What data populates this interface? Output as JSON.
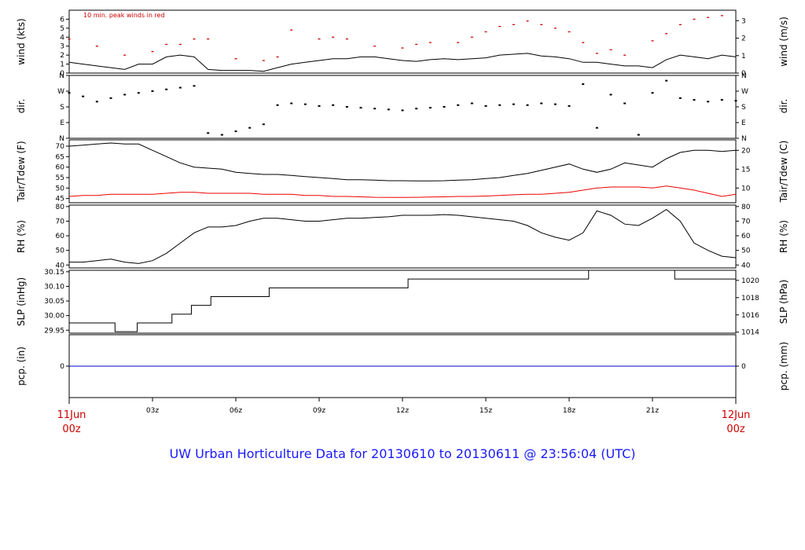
{
  "page_title": "UW Urban Horticulture Data for 20130610  to  20130611 @ 23:56:04  (UTC)",
  "colors": {
    "frame": "#000000",
    "peak": "#cc0000",
    "dew": "#ee0000",
    "precip": "#0000cc",
    "title": "#1a1aff",
    "date": "#cc0000"
  },
  "chart_data": [
    {
      "type": "line",
      "panel": "wind",
      "ylabel_left": "wind (kts)",
      "ylabel_right": "wind (m/s)",
      "annotation": "10 min. peak winds in red",
      "ylim": [
        0,
        7
      ],
      "left_ticks": [
        "0",
        "1",
        "2",
        "3",
        "4",
        "5",
        "6"
      ],
      "right_ticks": [
        "0",
        "1",
        "2",
        "3"
      ],
      "right_tick_values": [
        0,
        1,
        2,
        3
      ],
      "series": [
        {
          "name": "wind",
          "x": [
            0,
            0.5,
            1,
            1.5,
            2,
            2.5,
            3,
            3.5,
            4,
            4.5,
            5,
            5.5,
            6,
            6.5,
            7,
            7.5,
            8,
            8.5,
            9,
            9.5,
            10,
            10.5,
            11,
            11.5,
            12,
            12.5,
            13,
            13.5,
            14,
            14.5,
            15,
            15.5,
            16,
            16.5,
            17,
            17.5,
            18,
            18.5,
            19,
            19.5,
            20,
            20.5,
            21,
            21.5,
            22,
            22.5,
            23,
            23.5,
            24
          ],
          "values": [
            1.2,
            1.0,
            0.8,
            0.6,
            0.4,
            1.0,
            1.0,
            1.8,
            2.0,
            1.8,
            0.4,
            0.3,
            0.3,
            0.3,
            0.2,
            0.6,
            1.0,
            1.2,
            1.4,
            1.6,
            1.6,
            1.8,
            1.8,
            1.6,
            1.4,
            1.3,
            1.5,
            1.6,
            1.5,
            1.6,
            1.7,
            2.0,
            2.1,
            2.2,
            1.9,
            1.8,
            1.6,
            1.2,
            1.2,
            1.0,
            0.8,
            0.8,
            0.6,
            1.5,
            2.0,
            1.8,
            1.6,
            2.0,
            1.8
          ]
        },
        {
          "name": "peak",
          "x": [
            0,
            1,
            2,
            3,
            3.5,
            4,
            4.5,
            5,
            6,
            7,
            7.5,
            8,
            9,
            9.5,
            10,
            11,
            12,
            12.5,
            13,
            14,
            14.5,
            15,
            15.5,
            16,
            16.5,
            17,
            17.5,
            18,
            18.5,
            19,
            19.5,
            20,
            21,
            21.5,
            22,
            22.5,
            23,
            23.5
          ],
          "values": [
            3.8,
            3.0,
            2.0,
            2.4,
            3.2,
            3.2,
            3.8,
            3.8,
            1.6,
            1.4,
            1.8,
            4.8,
            3.8,
            4.0,
            3.8,
            3.0,
            2.8,
            3.2,
            3.4,
            3.4,
            4.0,
            4.6,
            5.2,
            5.4,
            5.8,
            5.4,
            5.0,
            4.6,
            3.4,
            2.2,
            2.6,
            2.0,
            3.6,
            4.4,
            5.4,
            6.0,
            6.2,
            6.4
          ]
        }
      ]
    },
    {
      "type": "scatter",
      "panel": "dir",
      "ylabel_left": "dir.",
      "ylabel_right": "dir.",
      "ylim": [
        0,
        360
      ],
      "ticks": [
        "N",
        "E",
        "S",
        "W",
        "N"
      ],
      "tick_values": [
        0,
        90,
        180,
        270,
        360
      ],
      "x": [
        0,
        0.5,
        1,
        1.5,
        2,
        2.5,
        3,
        3.5,
        4,
        4.5,
        5,
        5.5,
        6,
        6.5,
        7,
        7.5,
        8,
        8.5,
        9,
        9.5,
        10,
        10.5,
        11,
        11.5,
        12,
        12.5,
        13,
        13.5,
        14,
        14.5,
        15,
        15.5,
        16,
        16.5,
        17,
        17.5,
        18,
        18.5,
        19,
        19.5,
        20,
        20.5,
        21,
        21.5,
        22,
        22.5,
        23,
        23.5,
        24
      ],
      "values": [
        260,
        240,
        210,
        230,
        250,
        260,
        270,
        280,
        290,
        300,
        30,
        20,
        40,
        60,
        80,
        190,
        200,
        195,
        185,
        190,
        180,
        175,
        170,
        165,
        160,
        170,
        175,
        180,
        190,
        200,
        185,
        190,
        195,
        190,
        200,
        195,
        185,
        310,
        60,
        250,
        200,
        20,
        260,
        330,
        230,
        220,
        210,
        220,
        215
      ]
    },
    {
      "type": "line",
      "panel": "temperature",
      "ylabel_left": "Tair/Tdew (F)",
      "ylabel_right": "Tair/Tdew (C)",
      "ylim": [
        43,
        73
      ],
      "left_ticks": [
        "45",
        "50",
        "55",
        "60",
        "65",
        "70"
      ],
      "right_ticks": [
        "10",
        "15",
        "20"
      ],
      "right_tick_values": [
        10,
        15,
        20
      ],
      "series": [
        {
          "name": "Tair",
          "x": [
            0,
            0.5,
            1,
            1.5,
            2,
            2.5,
            3,
            3.5,
            4,
            4.5,
            5,
            5.5,
            6,
            6.5,
            7,
            7.5,
            8,
            8.5,
            9,
            9.5,
            10,
            10.5,
            11,
            11.5,
            12,
            12.5,
            13,
            13.5,
            14,
            14.5,
            15,
            15.5,
            16,
            16.5,
            17,
            17.5,
            18,
            18.5,
            19,
            19.5,
            20,
            20.5,
            21,
            21.5,
            22,
            22.5,
            23,
            23.5,
            24
          ],
          "values": [
            70,
            70.5,
            71,
            71.5,
            71,
            71,
            68,
            65,
            62,
            60,
            59.5,
            59,
            57.5,
            57,
            56.5,
            56.5,
            56,
            55.5,
            55,
            54.5,
            54,
            54,
            53.8,
            53.5,
            53.5,
            53.4,
            53.4,
            53.5,
            53.8,
            54,
            54.5,
            55,
            56,
            57,
            58.5,
            60,
            61.5,
            59,
            57.5,
            59,
            62,
            61,
            60,
            64,
            67,
            68,
            68,
            67.5,
            68
          ]
        },
        {
          "name": "Tdew",
          "x": [
            0,
            0.5,
            1,
            1.5,
            2,
            2.5,
            3,
            3.5,
            4,
            4.5,
            5,
            5.5,
            6,
            6.5,
            7,
            7.5,
            8,
            8.5,
            9,
            9.5,
            10,
            10.5,
            11,
            11.5,
            12,
            12.5,
            13,
            13.5,
            14,
            14.5,
            15,
            15.5,
            16,
            16.5,
            17,
            17.5,
            18,
            18.5,
            19,
            19.5,
            20,
            20.5,
            21,
            21.5,
            22,
            22.5,
            23,
            23.5,
            24
          ],
          "values": [
            46,
            46.5,
            46.5,
            47,
            47,
            47,
            47,
            47.5,
            48,
            48,
            47.5,
            47.5,
            47.5,
            47.5,
            47,
            47,
            47,
            46.5,
            46.5,
            46,
            46,
            45.8,
            45.6,
            45.5,
            45.5,
            45.6,
            45.7,
            45.8,
            46,
            46,
            46.2,
            46.5,
            46.8,
            47,
            47,
            47.5,
            48,
            49,
            50,
            50.5,
            50.5,
            50.5,
            50,
            51,
            50,
            49,
            47.5,
            46,
            47
          ]
        }
      ]
    },
    {
      "type": "line",
      "panel": "rh",
      "ylabel_left": "RH (%)",
      "ylabel_right": "RH (%)",
      "ylim": [
        38,
        81
      ],
      "left_ticks": [
        "40",
        "50",
        "60",
        "70",
        "80"
      ],
      "right_ticks": [
        "40",
        "50",
        "60",
        "70",
        "80"
      ],
      "series": [
        {
          "name": "RH",
          "x": [
            0,
            0.5,
            1,
            1.5,
            2,
            2.5,
            3,
            3.5,
            4,
            4.5,
            5,
            5.5,
            6,
            6.5,
            7,
            7.5,
            8,
            8.5,
            9,
            9.5,
            10,
            10.5,
            11,
            11.5,
            12,
            12.5,
            13,
            13.5,
            14,
            14.5,
            15,
            15.5,
            16,
            16.5,
            17,
            17.5,
            18,
            18.5,
            19,
            19.5,
            20,
            20.5,
            21,
            21.5,
            22,
            22.5,
            23,
            23.5,
            24
          ],
          "values": [
            42,
            42,
            43,
            44,
            42,
            41,
            43,
            48,
            55,
            62,
            66,
            66,
            67,
            70,
            72,
            72,
            71,
            70,
            70,
            71,
            72,
            72,
            72.5,
            73,
            74,
            74,
            74,
            74.5,
            74,
            73,
            72,
            71,
            70,
            67,
            62,
            59,
            57,
            62,
            77,
            74,
            68,
            67,
            72,
            78,
            70,
            55,
            50,
            46,
            45
          ]
        }
      ]
    },
    {
      "type": "line",
      "panel": "slp",
      "ylabel_left": "SLP (inHg)",
      "ylabel_right": "SLP (hPa)",
      "ylim": [
        29.94,
        30.155
      ],
      "left_ticks": [
        "29.95",
        "30.00",
        "30.05",
        "30.10",
        "30.15"
      ],
      "left_tick_values": [
        29.95,
        30.0,
        30.05,
        30.1,
        30.15
      ],
      "right_ticks": [
        "1014",
        "1016",
        "1018",
        "1020"
      ],
      "right_tick_values": [
        1014,
        1016,
        1018,
        1020
      ],
      "step_x": [
        0,
        1.65,
        2.45,
        3.7,
        4.4,
        5.1,
        7.2,
        12.2,
        18.7,
        21.8,
        24
      ],
      "step_values": [
        29.975,
        29.945,
        29.975,
        30.005,
        30.035,
        30.065,
        30.095,
        30.125,
        30.155,
        30.125,
        30.125
      ]
    },
    {
      "type": "line",
      "panel": "precip",
      "ylabel_left": "pcp. (in)",
      "ylabel_right": "pcp. (mm)",
      "ylim": [
        -1,
        1
      ],
      "left_ticks": [
        "0"
      ],
      "right_ticks": [
        "0"
      ],
      "series": [
        {
          "name": "pcp",
          "x": [
            0,
            24
          ],
          "values": [
            0,
            0
          ]
        }
      ]
    }
  ],
  "x_axis": {
    "ticks": [
      "03z",
      "06z",
      "09z",
      "12z",
      "15z",
      "18z",
      "21z"
    ],
    "tick_hours": [
      3,
      6,
      9,
      12,
      15,
      18,
      21
    ],
    "start_label": [
      "11Jun",
      "00z"
    ],
    "end_label": [
      "12Jun",
      "00z"
    ],
    "xlim": [
      0,
      24
    ]
  }
}
